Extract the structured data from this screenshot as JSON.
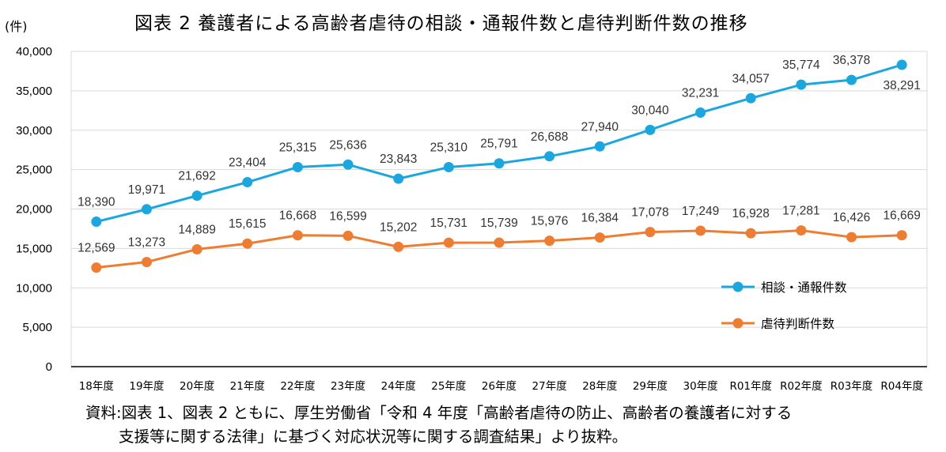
{
  "unit_label": "(件)",
  "footnote": {
    "line1": "資料:図表 1、図表 2 ともに、厚生労働省「令和 4 年度「高齢者虐待の防止、高齢者の養護者に対する",
    "line2": "支援等に関する法律」に基づく対応状況等に関する調査結果」より抜粋。"
  },
  "chart_data": {
    "type": "line",
    "title": "図表 2  養護者による高齢者虐待の相談・通報件数と虐待判断件数の推移",
    "ylabel": "(件)",
    "ylim": [
      0,
      40000
    ],
    "yticks": [
      0,
      5000,
      10000,
      15000,
      20000,
      25000,
      30000,
      35000,
      40000
    ],
    "ytick_labels": [
      "0",
      "5,000",
      "10,000",
      "15,000",
      "20,000",
      "25,000",
      "30,000",
      "35,000",
      "40,000"
    ],
    "grid": true,
    "legend_position": "bottom-right",
    "categories": [
      "18年度",
      "19年度",
      "20年度",
      "21年度",
      "22年度",
      "23年度",
      "24年度",
      "25年度",
      "26年度",
      "27年度",
      "28年度",
      "29年度",
      "30年度",
      "R01年度",
      "R02年度",
      "R03年度",
      "R04年度"
    ],
    "series": [
      {
        "name": "相談・通報件数",
        "color": "#1aa7e0",
        "values": [
          18390,
          19971,
          21692,
          23404,
          25315,
          25636,
          23843,
          25310,
          25791,
          26688,
          27940,
          30040,
          32231,
          34057,
          35774,
          36378,
          38291
        ],
        "labels": [
          "18,390",
          "19,971",
          "21,692",
          "23,404",
          "25,315",
          "25,636",
          "23,843",
          "25,310",
          "25,791",
          "26,688",
          "27,940",
          "30,040",
          "32,231",
          "34,057",
          "35,774",
          "36,378",
          "38,291"
        ]
      },
      {
        "name": "虐待判断件数",
        "color": "#ee7d31",
        "values": [
          12569,
          13273,
          14889,
          15615,
          16668,
          16599,
          15202,
          15731,
          15739,
          15976,
          16384,
          17078,
          17249,
          16928,
          17281,
          16426,
          16669
        ],
        "labels": [
          "12,569",
          "13,273",
          "14,889",
          "15,615",
          "16,668",
          "16,599",
          "15,202",
          "15,731",
          "15,739",
          "15,976",
          "16,384",
          "17,078",
          "17,249",
          "16,928",
          "17,281",
          "16,426",
          "16,669"
        ]
      }
    ]
  }
}
